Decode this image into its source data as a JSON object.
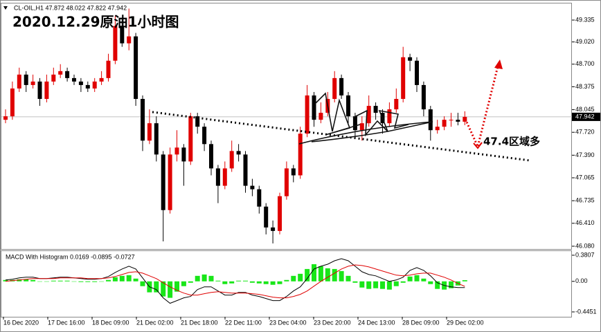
{
  "chart_data": [
    {
      "type": "candlestick",
      "title": "2020.12.29原油1小时图",
      "header": "CL-OIL,H1  47.872 48.022 47.822 47.942",
      "annotation": "47.4区域多",
      "current_price": 47.942,
      "up_color": "#e00000",
      "down_color": "#000000",
      "ylim": [
        46.03,
        49.544
      ],
      "yticks": [
        49.335,
        {
          "value": 49.02,
          "label": "49.020"
        },
        {
          "value": 48.7,
          "label": "48.700"
        },
        48.375,
        48.045,
        {
          "value": 47.72,
          "label": "47.720"
        },
        {
          "value": 47.39,
          "label": "47.390"
        },
        47.065,
        46.735,
        {
          "value": 46.41,
          "label": "46.410"
        },
        {
          "value": 46.08,
          "label": "46.080"
        }
      ],
      "open": [
        47.9,
        47.95,
        48.35,
        48.55,
        48.4,
        48.45,
        48.2,
        48.45,
        48.55,
        48.6,
        48.5,
        48.45,
        48.4,
        48.35,
        48.45,
        48.5,
        48.75,
        49.25,
        49.0,
        49.1,
        48.2,
        47.6,
        47.85,
        47.4,
        46.6,
        47.4,
        47.5,
        47.3,
        47.95,
        47.8,
        47.55,
        47.2,
        46.95,
        47.2,
        47.45,
        47.4,
        46.95,
        46.9,
        46.65,
        46.35,
        46.3,
        46.8,
        47.2,
        47.1,
        47.7,
        48.25,
        47.9,
        48.0,
        48.2,
        48.5,
        48.25,
        47.95,
        47.75,
        47.85,
        48.1,
        48.0,
        47.85,
        48.05,
        48.2,
        48.8,
        48.75,
        48.4,
        48.05,
        47.75,
        47.8,
        47.9,
        47.9,
        47.872
      ],
      "high": [
        48.05,
        48.45,
        48.65,
        48.6,
        48.55,
        48.5,
        48.55,
        48.65,
        48.7,
        48.65,
        48.55,
        48.5,
        48.45,
        48.5,
        48.6,
        48.85,
        49.4,
        49.35,
        49.5,
        49.15,
        48.25,
        48.05,
        47.95,
        47.45,
        47.5,
        47.75,
        47.55,
        48.0,
        48.0,
        47.85,
        47.6,
        47.25,
        47.3,
        47.6,
        47.55,
        47.45,
        47.05,
        46.95,
        46.7,
        46.45,
        46.85,
        47.3,
        47.25,
        47.8,
        48.4,
        48.3,
        48.15,
        48.3,
        48.6,
        48.55,
        48.3,
        48.0,
        47.95,
        48.25,
        48.15,
        48.05,
        48.15,
        48.35,
        48.95,
        48.85,
        48.8,
        48.45,
        48.1,
        47.9,
        47.95,
        48.0,
        48.0,
        48.022
      ],
      "low": [
        47.85,
        47.9,
        48.3,
        48.3,
        48.35,
        48.1,
        48.15,
        48.4,
        48.5,
        48.45,
        48.4,
        48.3,
        48.3,
        48.3,
        48.4,
        48.45,
        48.7,
        48.95,
        48.9,
        48.1,
        47.45,
        47.55,
        47.3,
        46.15,
        46.55,
        47.3,
        46.95,
        47.25,
        47.7,
        47.45,
        47.1,
        46.7,
        46.9,
        47.15,
        47.3,
        46.85,
        46.8,
        46.55,
        46.25,
        46.12,
        46.25,
        46.75,
        47.0,
        47.05,
        47.65,
        47.8,
        47.85,
        47.95,
        48.15,
        48.2,
        47.85,
        47.65,
        47.6,
        47.8,
        47.9,
        47.7,
        47.8,
        48.0,
        48.15,
        48.6,
        48.3,
        47.95,
        47.6,
        47.7,
        47.75,
        47.8,
        47.82,
        47.822
      ],
      "close": [
        47.95,
        48.35,
        48.55,
        48.4,
        48.45,
        48.2,
        48.45,
        48.55,
        48.6,
        48.5,
        48.45,
        48.4,
        48.35,
        48.45,
        48.5,
        48.75,
        49.25,
        49.0,
        49.1,
        48.2,
        47.6,
        47.85,
        47.4,
        46.6,
        47.4,
        47.5,
        47.3,
        47.95,
        47.8,
        47.55,
        47.2,
        46.95,
        47.2,
        47.45,
        47.4,
        46.95,
        46.9,
        46.65,
        46.35,
        46.3,
        46.8,
        47.2,
        47.1,
        47.7,
        48.25,
        47.9,
        48.0,
        48.2,
        48.5,
        48.25,
        47.95,
        47.75,
        47.85,
        48.1,
        48.0,
        47.85,
        48.05,
        48.2,
        48.8,
        48.75,
        48.4,
        48.05,
        47.75,
        47.8,
        47.9,
        47.9,
        47.872,
        47.942
      ]
    },
    {
      "type": "macd",
      "label": "MACD With Histogram 0.0169 -0.0895 -0.0727",
      "ylim": [
        -0.516,
        0.441
      ],
      "yticks": [
        0.3807,
        {
          "value": 0,
          "label": "0.00"
        },
        -0.4451
      ],
      "x_labels": [
        "16 Dec 2020",
        "17 Dec 16:00",
        "18 Dec 09:00",
        "21 Dec 02:00",
        "21 Dec 18:00",
        "22 Dec 11:00",
        "23 Dec 04:00",
        "23 Dec 20:00",
        "24 Dec 13:00",
        "28 Dec 09:00",
        "29 Dec 02:00"
      ],
      "series": [
        {
          "kind": "histogram",
          "color": "#19e619",
          "values": [
            0.02,
            0.02,
            0.03,
            0.03,
            0.02,
            0.0,
            0.0,
            0.01,
            0.01,
            0.01,
            0.0,
            -0.01,
            -0.01,
            -0.01,
            0.0,
            0.02,
            0.06,
            0.08,
            0.09,
            0.04,
            -0.07,
            -0.16,
            -0.16,
            -0.22,
            -0.24,
            -0.15,
            -0.07,
            -0.02,
            0.08,
            0.1,
            0.08,
            0.01,
            -0.04,
            -0.03,
            0.01,
            0.01,
            -0.02,
            -0.03,
            -0.04,
            -0.05,
            -0.04,
            0.02,
            0.08,
            0.11,
            0.18,
            0.25,
            0.22,
            0.19,
            0.18,
            0.15,
            0.08,
            -0.02,
            -0.09,
            -0.11,
            -0.1,
            -0.11,
            -0.12,
            -0.07,
            -0.02,
            0.07,
            0.09,
            0.04,
            -0.04,
            -0.11,
            -0.12,
            -0.1,
            -0.06,
            0.0169
          ]
        },
        {
          "kind": "line",
          "color": "#000000",
          "values": [
            0.02,
            0.03,
            0.05,
            0.06,
            0.06,
            0.04,
            0.04,
            0.05,
            0.06,
            0.06,
            0.05,
            0.04,
            0.03,
            0.03,
            0.04,
            0.07,
            0.13,
            0.18,
            0.22,
            0.18,
            0.05,
            -0.08,
            -0.12,
            -0.24,
            -0.32,
            -0.28,
            -0.24,
            -0.22,
            -0.12,
            -0.08,
            -0.08,
            -0.14,
            -0.2,
            -0.2,
            -0.16,
            -0.16,
            -0.2,
            -0.22,
            -0.25,
            -0.28,
            -0.28,
            -0.22,
            -0.14,
            -0.08,
            0.04,
            0.18,
            0.22,
            0.25,
            0.3,
            0.33,
            0.3,
            0.22,
            0.14,
            0.1,
            0.08,
            0.04,
            0.0,
            0.02,
            0.06,
            0.16,
            0.2,
            0.16,
            0.08,
            -0.02,
            -0.06,
            -0.08,
            -0.09,
            -0.0895
          ]
        },
        {
          "kind": "line",
          "color": "#e00000",
          "values": [
            0.0,
            0.01,
            0.02,
            0.03,
            0.04,
            0.04,
            0.04,
            0.04,
            0.05,
            0.05,
            0.05,
            0.05,
            0.04,
            0.04,
            0.04,
            0.05,
            0.07,
            0.1,
            0.13,
            0.14,
            0.12,
            0.08,
            0.04,
            -0.02,
            -0.08,
            -0.13,
            -0.17,
            -0.2,
            -0.2,
            -0.18,
            -0.16,
            -0.15,
            -0.16,
            -0.17,
            -0.17,
            -0.17,
            -0.18,
            -0.19,
            -0.21,
            -0.23,
            -0.24,
            -0.24,
            -0.22,
            -0.19,
            -0.14,
            -0.07,
            0.0,
            0.06,
            0.12,
            0.18,
            0.22,
            0.24,
            0.23,
            0.21,
            0.18,
            0.15,
            0.12,
            0.09,
            0.08,
            0.09,
            0.11,
            0.12,
            0.12,
            0.09,
            0.06,
            0.02,
            -0.03,
            -0.0727
          ]
        }
      ]
    }
  ]
}
